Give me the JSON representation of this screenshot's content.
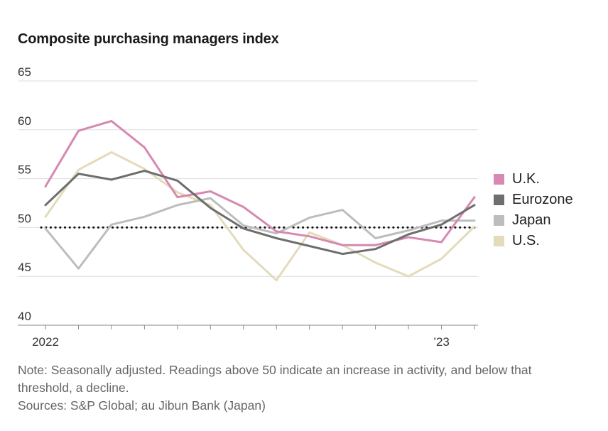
{
  "chart_data": {
    "type": "line",
    "title": "Composite purchasing managers index",
    "xlabel": "",
    "ylabel": "",
    "ylim": [
      40,
      65
    ],
    "yticks": [
      40,
      45,
      50,
      55,
      60,
      65
    ],
    "x_tick_labels": [
      {
        "label": "2022",
        "index": 0
      },
      {
        "label": "’23",
        "index": 12
      }
    ],
    "reference_line": {
      "value": 50,
      "style": "dotted"
    },
    "categories": [
      "Jan 2022",
      "Feb 2022",
      "Mar 2022",
      "Apr 2022",
      "May 2022",
      "Jun 2022",
      "Jul 2022",
      "Aug 2022",
      "Sep 2022",
      "Oct 2022",
      "Nov 2022",
      "Dec 2022",
      "Jan 2023",
      "Feb 2023"
    ],
    "series": [
      {
        "name": "U.K.",
        "color": "#d689b2",
        "values": [
          54.2,
          59.9,
          60.9,
          58.2,
          53.1,
          53.7,
          52.1,
          49.6,
          49.1,
          48.2,
          48.2,
          49.0,
          48.5,
          53.1
        ]
      },
      {
        "name": "Eurozone",
        "color": "#6e6e6e",
        "values": [
          52.3,
          55.5,
          54.9,
          55.8,
          54.8,
          52.0,
          49.9,
          48.9,
          48.1,
          47.3,
          47.8,
          49.3,
          50.3,
          52.3
        ]
      },
      {
        "name": "Japan",
        "color": "#bdbdbd",
        "values": [
          49.9,
          45.8,
          50.3,
          51.1,
          52.3,
          53.0,
          50.2,
          49.4,
          51.0,
          51.8,
          48.9,
          49.7,
          50.7,
          50.7
        ]
      },
      {
        "name": "U.S.",
        "color": "#e3dbba",
        "values": [
          51.1,
          55.9,
          57.7,
          56.0,
          53.6,
          52.3,
          47.7,
          44.6,
          49.5,
          48.2,
          46.4,
          45.0,
          46.8,
          50.1
        ]
      }
    ],
    "legend_position": "right"
  },
  "note": {
    "text": "Note: Seasonally adjusted. Readings above 50 indicate an increase in activity, and below that threshold, a decline.",
    "sources": "Sources: S&P Global; au Jibun Bank (Japan)"
  }
}
